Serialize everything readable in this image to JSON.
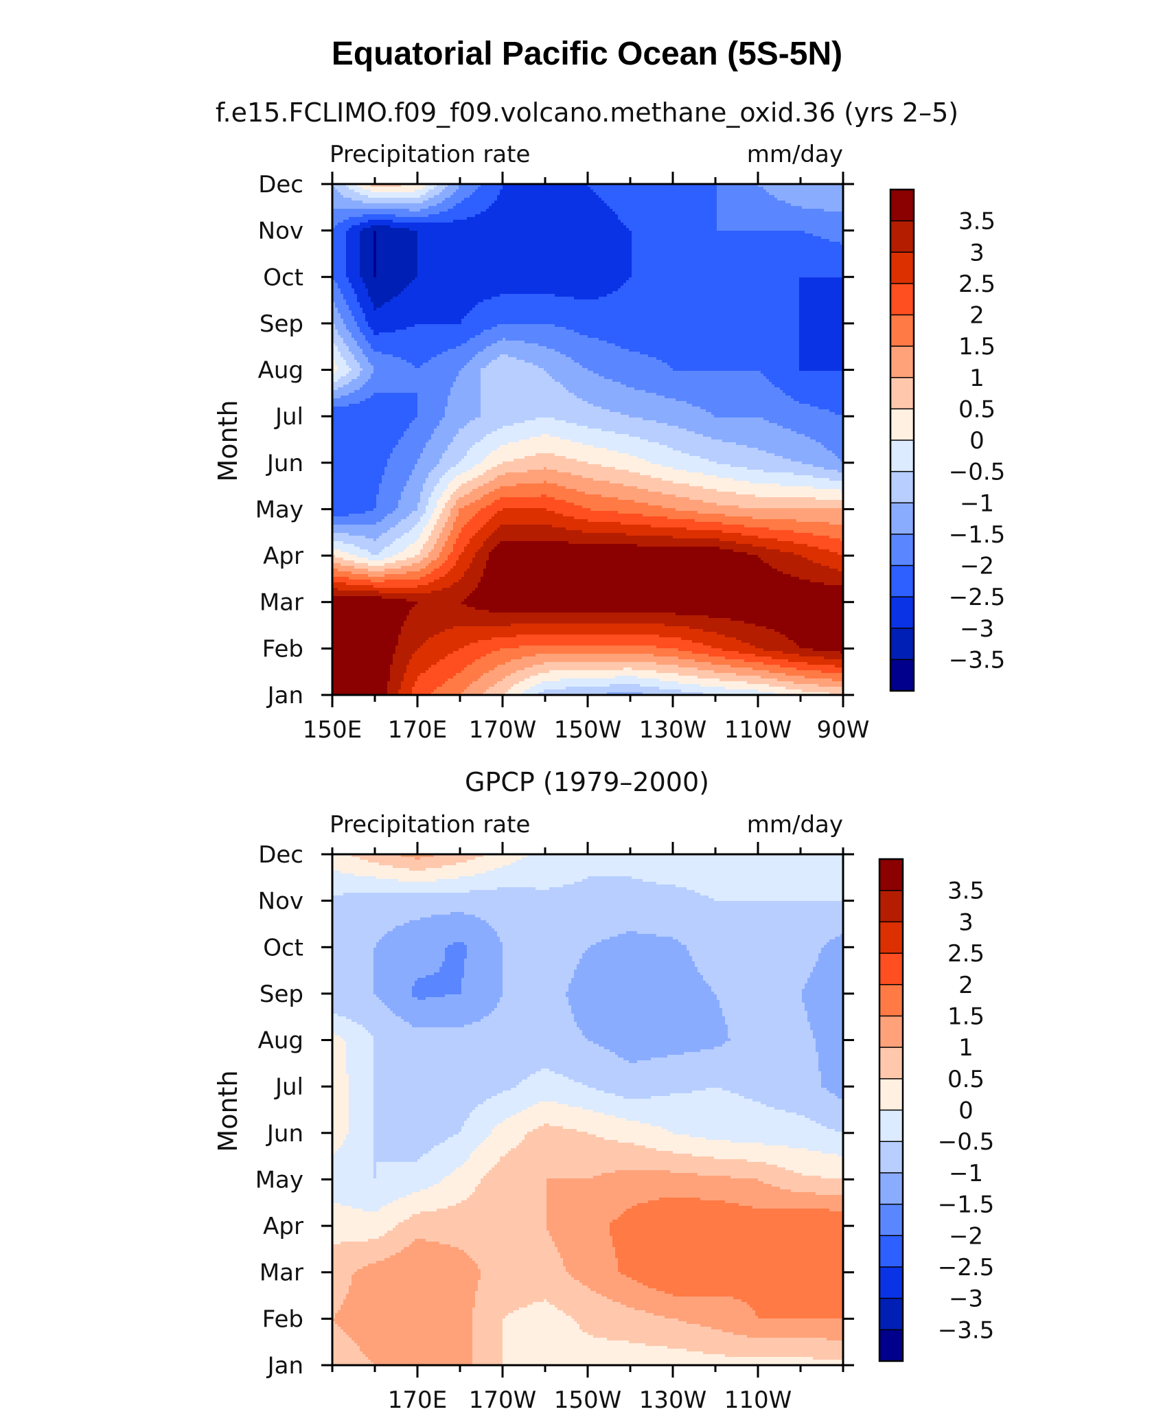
{
  "figure": {
    "title": "Equatorial Pacific Ocean (5S-5N)"
  },
  "colorbar": {
    "labels": [
      "3.5",
      "3",
      "2.5",
      "2",
      "1.5",
      "1",
      "0.5",
      "0",
      "−0.5",
      "−1",
      "−1.5",
      "−2",
      "−2.5",
      "−3",
      "−3.5"
    ],
    "colors": [
      "#8b0000",
      "#b41d00",
      "#dc3000",
      "#ff4e1f",
      "#ff7a45",
      "#ffa27a",
      "#ffc8ad",
      "#fff0e2",
      "#dcebff",
      "#b7ceff",
      "#8aacff",
      "#5a87ff",
      "#2e5fff",
      "#0a33e6",
      "#001fb4",
      "#00008c"
    ]
  },
  "chart_data": [
    {
      "type": "heatmap",
      "subtitle": "f.e15.FCLIMO.f09_f09.volcano.methane_oxid.36 (yrs 2–5)",
      "left_label": "Precipitation rate",
      "right_label": "mm/day",
      "ylabel": "Month",
      "x_tick_labels": [
        "150E",
        "170E",
        "170W",
        "150W",
        "130W",
        "110W",
        "90W"
      ],
      "y_tick_labels": [
        "Jan",
        "Feb",
        "Mar",
        "Apr",
        "May",
        "Jun",
        "Jul",
        "Aug",
        "Sep",
        "Oct",
        "Nov",
        "Dec"
      ],
      "x_longitudes": [
        150,
        160,
        170,
        180,
        190,
        200,
        210,
        220,
        230,
        240,
        250,
        260,
        270
      ],
      "months": [
        "Jan",
        "Feb",
        "Mar",
        "Apr",
        "May",
        "Jun",
        "Jul",
        "Aug",
        "Sep",
        "Oct",
        "Nov",
        "Dec"
      ],
      "values": [
        [
          3.8,
          4.0,
          2.2,
          1.5,
          0.5,
          -0.8,
          -1.0,
          -1.2,
          -0.8,
          -0.5,
          -0.3,
          0.2,
          0.5
        ],
        [
          4.0,
          4.0,
          3.0,
          2.5,
          2.0,
          1.8,
          1.8,
          1.8,
          2.0,
          2.5,
          3.0,
          3.5,
          3.8
        ],
        [
          4.0,
          4.0,
          3.5,
          3.5,
          4.0,
          4.0,
          4.0,
          4.0,
          4.0,
          4.0,
          4.0,
          4.0,
          4.0
        ],
        [
          0.5,
          -0.5,
          0.5,
          2.5,
          4.0,
          4.0,
          4.0,
          4.0,
          4.0,
          4.0,
          3.5,
          3.0,
          2.5
        ],
        [
          -2.5,
          -2.0,
          -1.0,
          1.5,
          2.5,
          2.5,
          2.0,
          1.8,
          1.5,
          1.2,
          1.0,
          1.0,
          1.0
        ],
        [
          -2.5,
          -2.2,
          -1.5,
          -0.5,
          0.5,
          0.8,
          0.5,
          0.2,
          -0.2,
          -0.5,
          -0.8,
          -1.0,
          -1.5
        ],
        [
          -2.5,
          -2.5,
          -2.0,
          -1.2,
          -0.8,
          -0.5,
          -0.8,
          -1.0,
          -1.2,
          -1.5,
          -1.5,
          -1.8,
          -2.0
        ],
        [
          0.3,
          -1.5,
          -2.0,
          -1.5,
          -0.5,
          -1.0,
          -1.5,
          -1.8,
          -2.0,
          -2.0,
          -2.0,
          -2.5,
          -2.5
        ],
        [
          -1.0,
          -2.8,
          -2.5,
          -2.5,
          -2.0,
          -2.0,
          -2.2,
          -2.3,
          -2.2,
          -2.0,
          -2.0,
          -2.5,
          -2.5
        ],
        [
          -2.0,
          -3.5,
          -3.0,
          -2.8,
          -2.8,
          -2.8,
          -2.8,
          -2.5,
          -2.2,
          -2.0,
          -2.0,
          -2.5,
          -2.5
        ],
        [
          -2.0,
          -3.5,
          -3.0,
          -2.8,
          -2.8,
          -3.0,
          -3.0,
          -2.5,
          -2.0,
          -2.0,
          -2.0,
          -2.0,
          -1.8
        ],
        [
          -1.0,
          0.8,
          0.5,
          -1.5,
          -2.5,
          -2.5,
          -2.5,
          -2.0,
          -2.0,
          -2.0,
          -1.5,
          -1.0,
          -1.0
        ]
      ],
      "xlim": [
        150,
        270
      ],
      "ylim": [
        "Jan",
        "Dec"
      ]
    },
    {
      "type": "heatmap",
      "subtitle": "GPCP (1979–2000)",
      "left_label": "Precipitation rate",
      "right_label": "mm/day",
      "ylabel": "Month",
      "x_tick_labels": [
        "170E",
        "170W",
        "150W",
        "130W",
        "110W"
      ],
      "y_tick_labels": [
        "Jan",
        "Feb",
        "Mar",
        "Apr",
        "May",
        "Jun",
        "Jul",
        "Aug",
        "Sep",
        "Oct",
        "Nov",
        "Dec"
      ],
      "x_longitudes": [
        150,
        160,
        170,
        180,
        190,
        200,
        210,
        220,
        230,
        240,
        250,
        260,
        270
      ],
      "months": [
        "Jan",
        "Feb",
        "Mar",
        "Apr",
        "May",
        "Jun",
        "Jul",
        "Aug",
        "Sep",
        "Oct",
        "Nov",
        "Dec"
      ],
      "values": [
        [
          0.8,
          1.0,
          1.5,
          1.2,
          0.5,
          0.3,
          0.3,
          0.2,
          0.2,
          0.3,
          0.3,
          0.3,
          0.4
        ],
        [
          1.0,
          1.2,
          1.5,
          1.2,
          0.5,
          0.3,
          0.6,
          0.8,
          1.0,
          1.2,
          1.5,
          1.5,
          1.5
        ],
        [
          0.8,
          1.2,
          1.5,
          1.2,
          0.8,
          0.8,
          1.2,
          1.6,
          2.0,
          1.8,
          1.6,
          1.8,
          1.8
        ],
        [
          0.3,
          0.2,
          0.8,
          0.8,
          0.8,
          1.0,
          1.3,
          1.7,
          2.0,
          2.0,
          1.8,
          2.0,
          2.0
        ],
        [
          -0.3,
          -0.5,
          -0.3,
          0.2,
          0.8,
          1.0,
          1.0,
          1.2,
          1.2,
          1.1,
          1.0,
          0.6,
          0.5
        ],
        [
          0.3,
          -0.5,
          -0.8,
          -0.5,
          0.2,
          0.7,
          0.5,
          0.3,
          0.0,
          -0.2,
          -0.3,
          -0.3,
          -0.5
        ],
        [
          0.3,
          -0.5,
          -0.8,
          -0.8,
          -0.6,
          -0.3,
          -0.5,
          -0.8,
          -0.6,
          -0.5,
          -0.6,
          -0.8,
          -1.2
        ],
        [
          0.2,
          -0.5,
          -0.8,
          -0.8,
          -0.8,
          -0.8,
          -1.0,
          -1.2,
          -1.2,
          -1.1,
          -0.8,
          -0.9,
          -1.2
        ],
        [
          -1.0,
          -1.0,
          -1.6,
          -1.5,
          -1.0,
          -0.8,
          -1.2,
          -1.4,
          -1.2,
          -1.0,
          -0.8,
          -1.0,
          -1.3
        ],
        [
          -0.8,
          -1.0,
          -1.3,
          -1.6,
          -1.0,
          -0.7,
          -1.0,
          -1.2,
          -1.1,
          -0.8,
          -0.6,
          -0.8,
          -1.2
        ],
        [
          -0.6,
          -0.8,
          -0.8,
          -0.8,
          -0.8,
          -0.6,
          -0.6,
          -0.6,
          -0.6,
          -0.5,
          -0.5,
          -0.5,
          -0.5
        ],
        [
          0.3,
          0.8,
          1.2,
          0.8,
          0.3,
          -0.2,
          -0.4,
          -0.4,
          -0.3,
          -0.3,
          -0.3,
          -0.3,
          -0.3
        ]
      ],
      "xlim": [
        150,
        270
      ],
      "ylim": [
        "Jan",
        "Dec"
      ]
    }
  ]
}
